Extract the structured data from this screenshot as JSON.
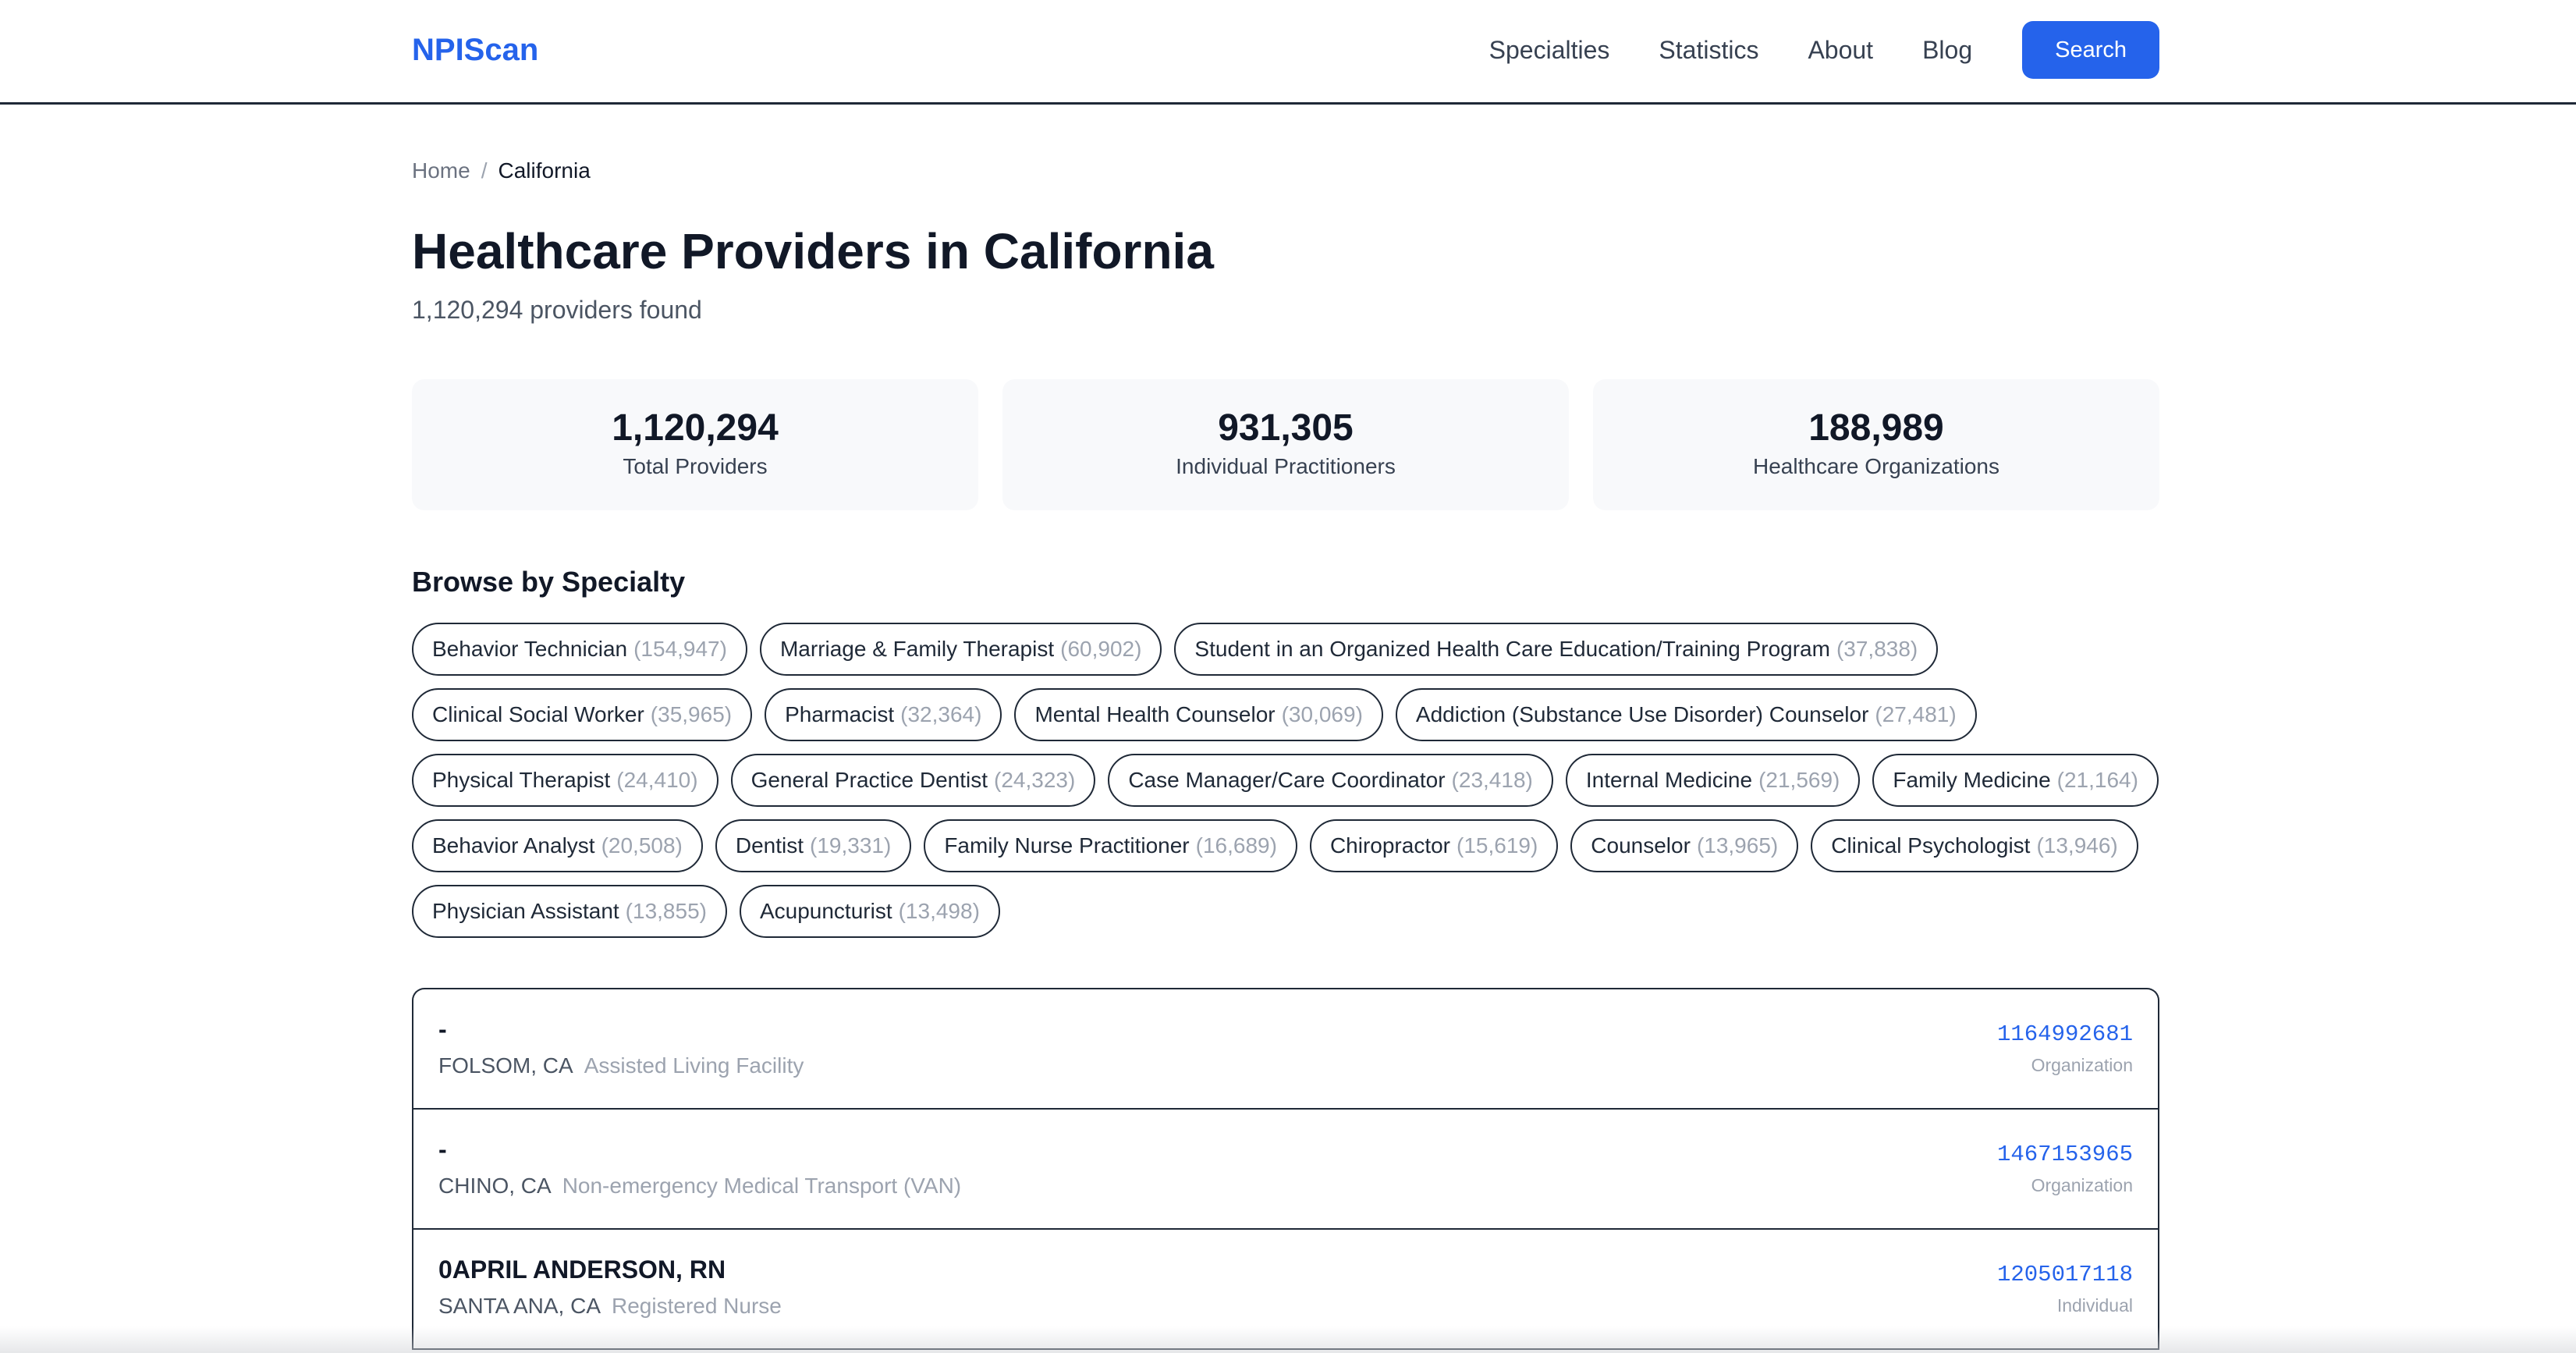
{
  "header": {
    "logo": "NPIScan",
    "nav": [
      "Specialties",
      "Statistics",
      "About",
      "Blog"
    ],
    "search_label": "Search"
  },
  "breadcrumb": {
    "home": "Home",
    "separator": "/",
    "current": "California"
  },
  "page": {
    "title": "Healthcare Providers in California",
    "subtitle": "1,120,294 providers found"
  },
  "stats": [
    {
      "value": "1,120,294",
      "label": "Total Providers"
    },
    {
      "value": "931,305",
      "label": "Individual Practitioners"
    },
    {
      "value": "188,989",
      "label": "Healthcare Organizations"
    }
  ],
  "specialties": {
    "title": "Browse by Specialty",
    "items": [
      {
        "name": "Behavior Technician",
        "count": "(154,947)"
      },
      {
        "name": "Marriage & Family Therapist",
        "count": "(60,902)"
      },
      {
        "name": "Student in an Organized Health Care Education/Training Program",
        "count": "(37,838)"
      },
      {
        "name": "Clinical Social Worker",
        "count": "(35,965)"
      },
      {
        "name": "Pharmacist",
        "count": "(32,364)"
      },
      {
        "name": "Mental Health Counselor",
        "count": "(30,069)"
      },
      {
        "name": "Addiction (Substance Use Disorder) Counselor",
        "count": "(27,481)"
      },
      {
        "name": "Physical Therapist",
        "count": "(24,410)"
      },
      {
        "name": "General Practice Dentist",
        "count": "(24,323)"
      },
      {
        "name": "Case Manager/Care Coordinator",
        "count": "(23,418)"
      },
      {
        "name": "Internal Medicine",
        "count": "(21,569)"
      },
      {
        "name": "Family Medicine",
        "count": "(21,164)"
      },
      {
        "name": "Behavior Analyst",
        "count": "(20,508)"
      },
      {
        "name": "Dentist",
        "count": "(19,331)"
      },
      {
        "name": "Family Nurse Practitioner",
        "count": "(16,689)"
      },
      {
        "name": "Chiropractor",
        "count": "(15,619)"
      },
      {
        "name": "Counselor",
        "count": "(13,965)"
      },
      {
        "name": "Clinical Psychologist",
        "count": "(13,946)"
      },
      {
        "name": "Physician Assistant",
        "count": "(13,855)"
      },
      {
        "name": "Acupuncturist",
        "count": "(13,498)"
      }
    ]
  },
  "providers": [
    {
      "name": "-",
      "location": "FOLSOM, CA",
      "specialty": "Assisted Living Facility",
      "npi": "1164992681",
      "type": "Organization"
    },
    {
      "name": "-",
      "location": "CHINO, CA",
      "specialty": "Non-emergency Medical Transport (VAN)",
      "npi": "1467153965",
      "type": "Organization"
    },
    {
      "name": "0APRIL ANDERSON, RN",
      "location": "SANTA ANA, CA",
      "specialty": "Registered Nurse",
      "npi": "1205017118",
      "type": "Individual"
    }
  ],
  "colors": {
    "brand": "#2563eb",
    "border": "#1f2937",
    "muted": "#9ca3af",
    "card_bg": "#f8f9fb"
  }
}
